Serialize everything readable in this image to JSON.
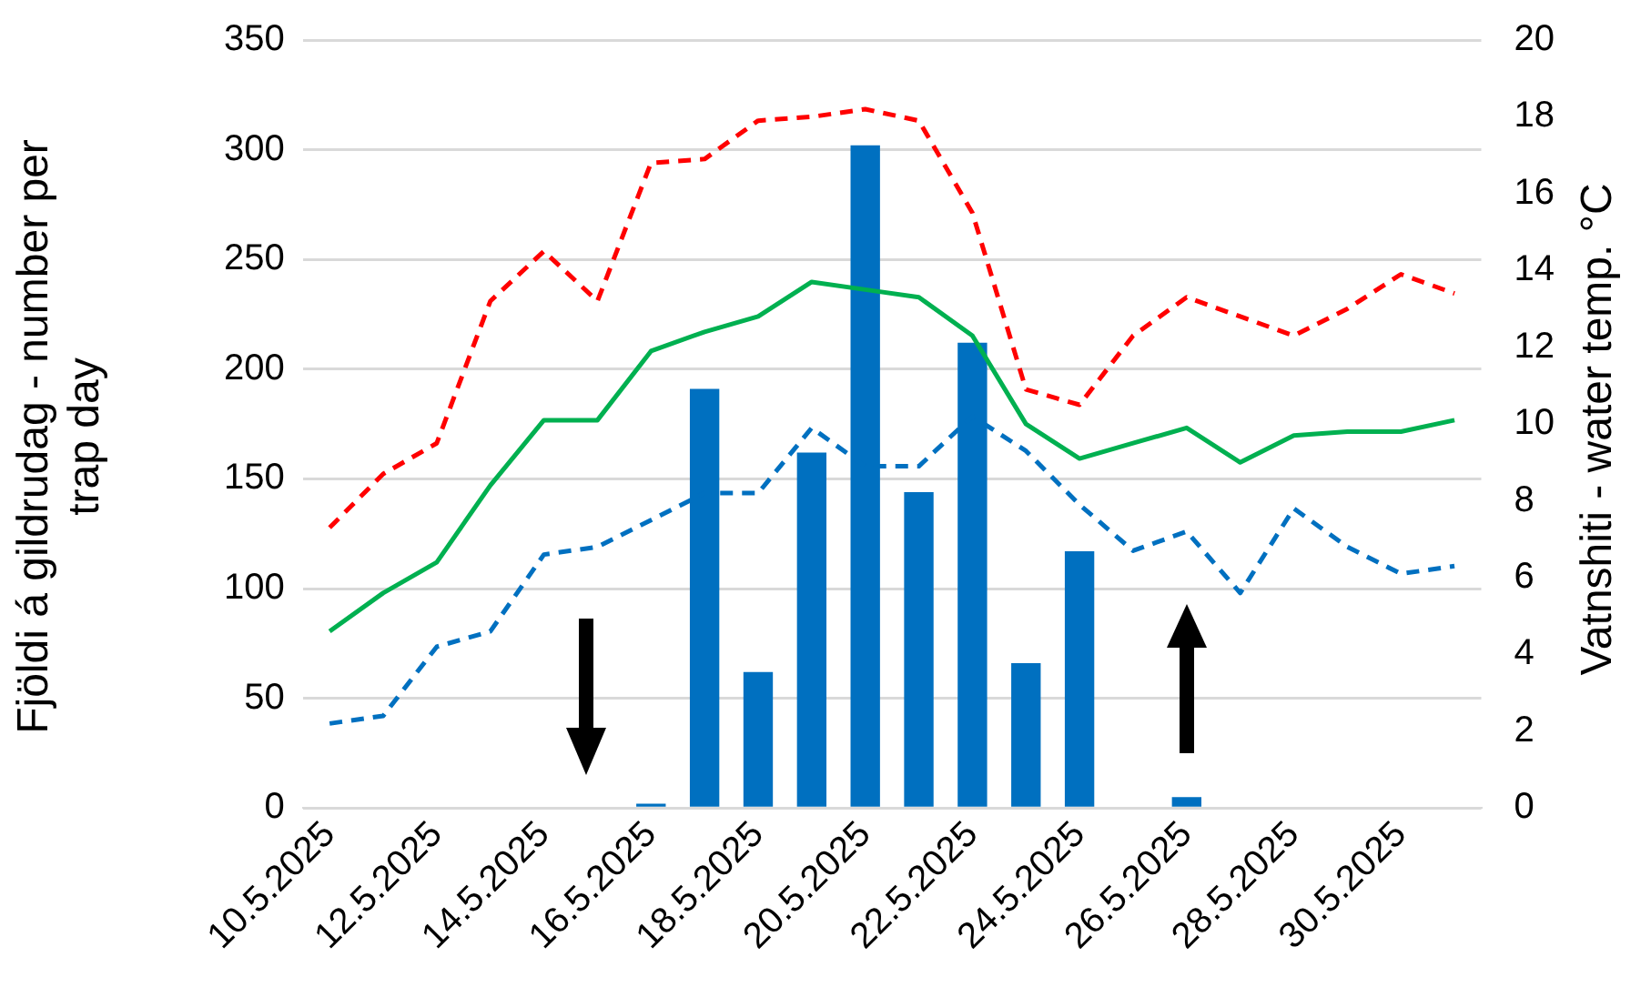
{
  "chart_data": {
    "type": "bar",
    "ylabel": "Fjöldi á gildrudag - number per trap day",
    "y2label": "Vatnshiti - water temp. °C",
    "categories": [
      "10.5.2025",
      null,
      "12.5.2025",
      null,
      "14.5.2025",
      null,
      "16.5.2025",
      null,
      "18.5.2025",
      null,
      "20.5.2025",
      null,
      "22.5.2025",
      null,
      "24.5.2025",
      null,
      "26.5.2025",
      null,
      "28.5.2025",
      null,
      "30.5.2025",
      null
    ],
    "series": [
      {
        "color": "#0070c0",
        "values": [
          null,
          null,
          null,
          null,
          null,
          null,
          2,
          191,
          62,
          162,
          302,
          144,
          212,
          66,
          117,
          null,
          5,
          null,
          null,
          null,
          null,
          null
        ]
      },
      {
        "type": "line",
        "axis": "y2",
        "color": "#ff0000",
        "line_style": "dashed",
        "values": [
          7.3,
          8.7,
          9.5,
          13.2,
          14.5,
          13.2,
          16.8,
          16.9,
          17.9,
          18.0,
          18.2,
          17.9,
          15.5,
          10.9,
          10.5,
          12.3,
          13.3,
          12.8,
          12.3,
          13.0,
          13.9,
          13.4
        ]
      },
      {
        "type": "line",
        "axis": "y2",
        "color": "#00b050",
        "line_style": "solid",
        "values": [
          4.6,
          5.6,
          6.4,
          8.4,
          10.1,
          10.1,
          11.9,
          12.4,
          12.8,
          13.7,
          13.5,
          13.3,
          12.3,
          10.0,
          9.1,
          9.5,
          9.9,
          9.0,
          9.7,
          9.8,
          9.8,
          10.1
        ]
      },
      {
        "type": "line",
        "axis": "y2",
        "color": "#0070c0",
        "line_style": "dashed",
        "values": [
          2.2,
          2.4,
          4.2,
          4.6,
          6.6,
          6.8,
          7.5,
          8.2,
          8.2,
          9.9,
          8.9,
          8.9,
          10.2,
          9.3,
          7.9,
          6.7,
          7.2,
          5.6,
          7.8,
          6.8,
          6.1,
          6.3
        ]
      }
    ],
    "ylim": [
      0,
      350
    ],
    "yticks": [
      0,
      50,
      100,
      150,
      200,
      250,
      300,
      350
    ],
    "y2lim": [
      0,
      20
    ],
    "y2ticks": [
      0,
      2,
      4,
      6,
      8,
      10,
      12,
      14,
      16,
      18,
      20
    ],
    "grid": "y",
    "legend": false,
    "marker": "none"
  }
}
